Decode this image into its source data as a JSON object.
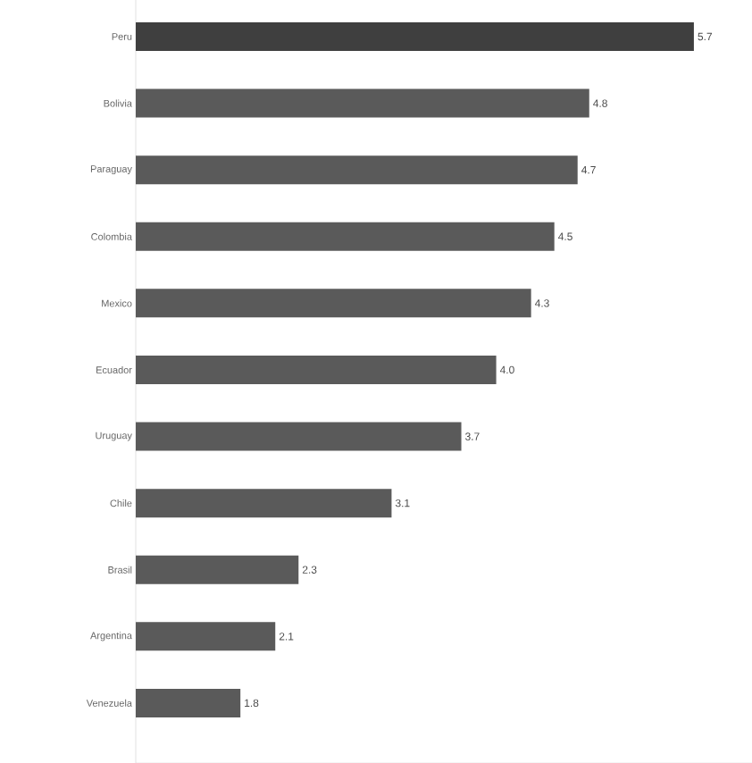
{
  "chart_data": {
    "type": "bar",
    "orientation": "horizontal",
    "categories": [
      "Peru",
      "Bolivia",
      "Paraguay",
      "Colombia",
      "Mexico",
      "Ecuador",
      "Uruguay",
      "Chile",
      "Brasil",
      "Argentina",
      "Venezuela"
    ],
    "values": [
      5.7,
      4.8,
      4.7,
      4.5,
      4.3,
      4.0,
      3.7,
      3.1,
      2.3,
      2.1,
      1.8
    ],
    "colors": [
      "#3f3f3f",
      "#5a5a5a",
      "#5a5a5a",
      "#5a5a5a",
      "#5a5a5a",
      "#5a5a5a",
      "#5a5a5a",
      "#5a5a5a",
      "#5a5a5a",
      "#5a5a5a",
      "#5a5a5a"
    ],
    "xlim": [
      0.9,
      6.2
    ],
    "value_labels": [
      "5.7",
      "4.8",
      "4.7",
      "4.5",
      "4.3",
      "4.0",
      "3.7",
      "3.1",
      "2.3",
      "2.1",
      "1.8"
    ],
    "tick_labels": "y"
  }
}
